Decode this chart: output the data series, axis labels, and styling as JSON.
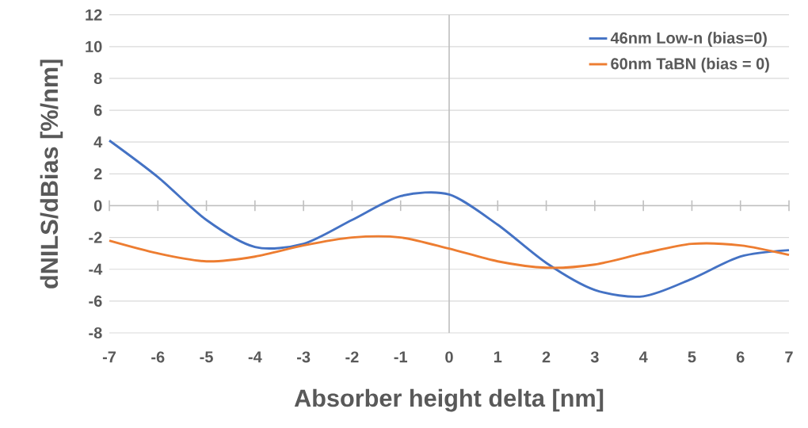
{
  "chart_data": {
    "type": "line",
    "xlabel": "Absorber height delta [nm]",
    "ylabel": "dNILS/dBias [%/nm]",
    "x": [
      -7,
      -6,
      -5,
      -4,
      -3,
      -2,
      -1,
      0,
      1,
      2,
      3,
      4,
      5,
      6,
      7
    ],
    "series": [
      {
        "name": "46nm Low-n (bias=0)",
        "color": "#4472c4",
        "values": [
          4.1,
          1.8,
          -0.9,
          -2.6,
          -2.4,
          -0.9,
          0.6,
          0.7,
          -1.2,
          -3.6,
          -5.3,
          -5.7,
          -4.6,
          -3.2,
          -2.8
        ]
      },
      {
        "name": "60nm TaBN (bias = 0)",
        "color": "#ed7d31",
        "values": [
          -2.2,
          -3.0,
          -3.5,
          -3.2,
          -2.5,
          -2.0,
          -2.0,
          -2.7,
          -3.5,
          -3.9,
          -3.7,
          -3.0,
          -2.4,
          -2.5,
          -3.1
        ]
      }
    ],
    "xlim": [
      -7,
      7
    ],
    "ylim": [
      -8,
      12
    ],
    "xticks": [
      -7,
      -6,
      -5,
      -4,
      -3,
      -2,
      -1,
      0,
      1,
      2,
      3,
      4,
      5,
      6,
      7
    ],
    "yticks": [
      -8,
      -6,
      -4,
      -2,
      0,
      2,
      4,
      6,
      8,
      10,
      12
    ],
    "ref_lines": [
      {
        "axis": "x",
        "value": 0,
        "color": "#bfbfbf"
      }
    ],
    "grid": "y",
    "legend": "top right",
    "marker": "none",
    "line_style": "solid"
  }
}
